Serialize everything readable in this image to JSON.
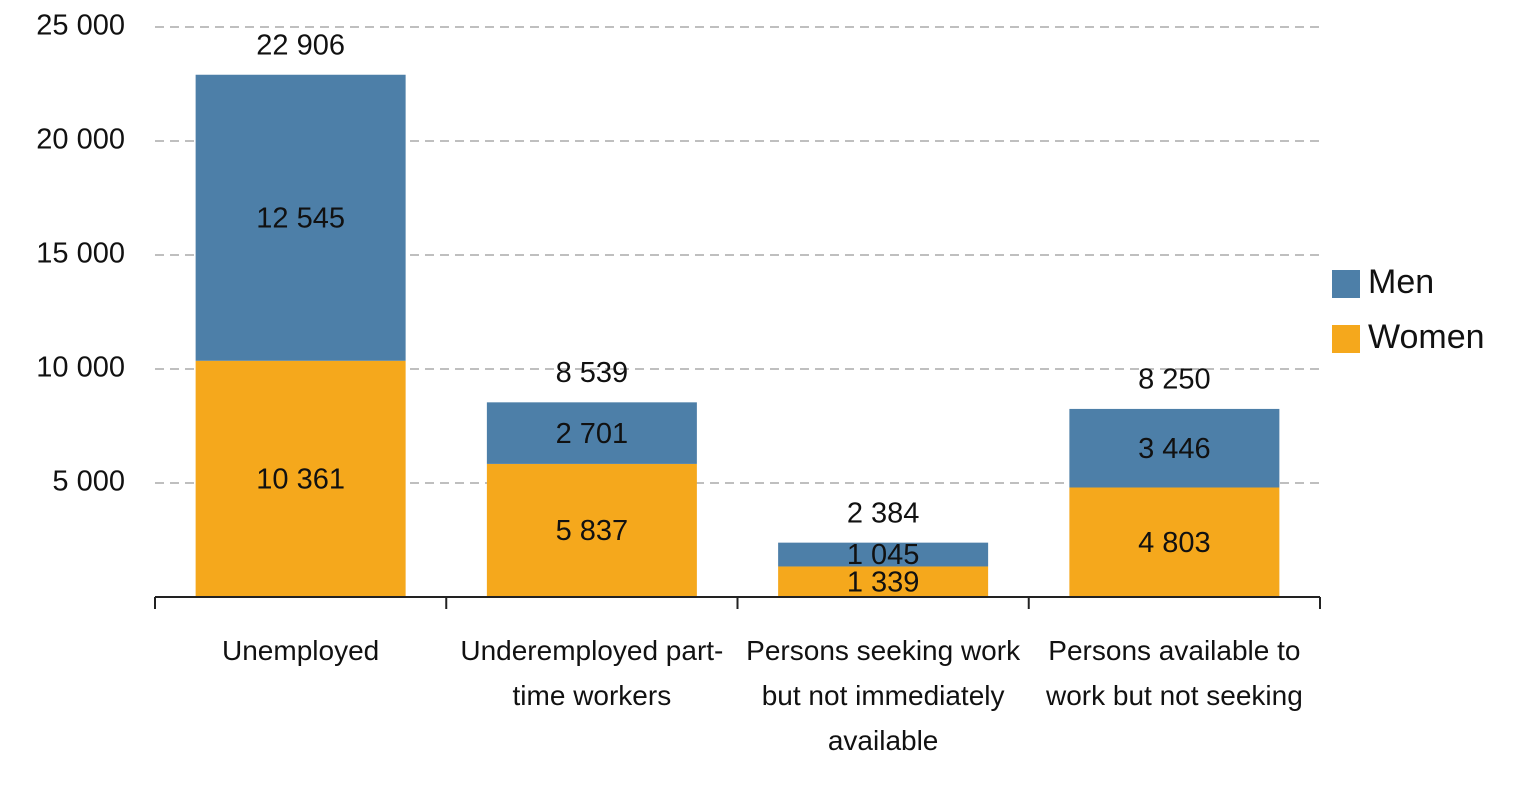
{
  "chart_data": {
    "type": "stacked_bar",
    "categories": [
      "Unemployed",
      "Underemployed part-time workers",
      "Persons seeking work but not immediately available",
      "Persons available to work but not seeking"
    ],
    "series": [
      {
        "name": "Women",
        "color": "#f5a81c",
        "values": [
          10361,
          5837,
          1339,
          4803
        ],
        "value_labels": [
          "10 361",
          "5 837",
          "1 339",
          "4 803"
        ]
      },
      {
        "name": "Men",
        "color": "#4d7fa8",
        "values": [
          12545,
          2701,
          1045,
          3446
        ],
        "value_labels": [
          "12 545",
          "2 701",
          "1 045",
          "3 446"
        ]
      }
    ],
    "totals": [
      22906,
      8539,
      2384,
      8250
    ],
    "total_labels": [
      "22 906",
      "8 539",
      "2 384",
      "8 250"
    ],
    "ylim": [
      0,
      25000
    ],
    "yticks": [
      {
        "value": 5000,
        "label": "5 000"
      },
      {
        "value": 10000,
        "label": "10 000"
      },
      {
        "value": 15000,
        "label": "15 000"
      },
      {
        "value": 20000,
        "label": "20 000"
      },
      {
        "value": 25000,
        "label": "25 000"
      }
    ],
    "grid": true,
    "legend": "right"
  }
}
